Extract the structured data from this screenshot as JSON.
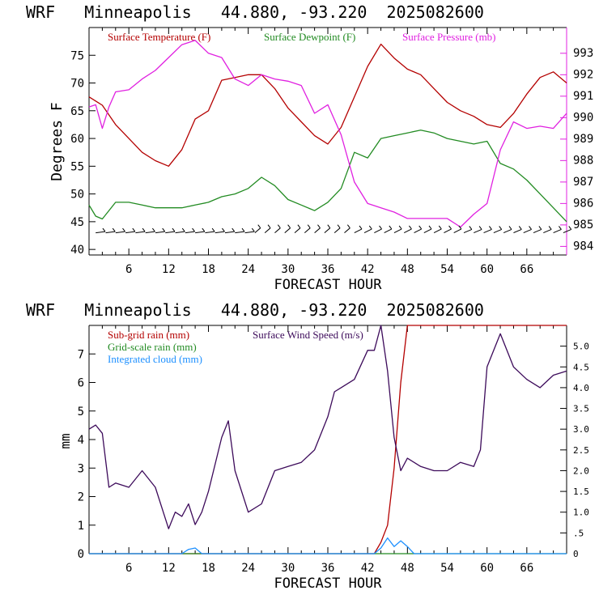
{
  "chart_data": [
    {
      "type": "line",
      "title": "WRF   Minneapolis   44.880, -93.220  2025082600",
      "xlabel": "FORECAST HOUR",
      "ylabel": "Degrees F",
      "xlim": [
        0,
        72
      ],
      "ylim": [
        39,
        80
      ],
      "y2lim": [
        983.6,
        994.2
      ],
      "x_ticks": [
        6,
        12,
        18,
        24,
        30,
        36,
        42,
        48,
        54,
        60,
        66
      ],
      "y_ticks": [
        40,
        45,
        50,
        55,
        60,
        65,
        70,
        75
      ],
      "y2_ticks": [
        984,
        985,
        986,
        987,
        988,
        989,
        990,
        991,
        992,
        993
      ],
      "series": [
        {
          "name": "Surface Temperature (F)",
          "color": "#b40000",
          "axis": "left",
          "x": [
            0,
            2,
            4,
            6,
            8,
            10,
            12,
            14,
            16,
            18,
            20,
            22,
            24,
            26,
            28,
            30,
            32,
            34,
            36,
            38,
            40,
            42,
            44,
            46,
            48,
            50,
            52,
            54,
            56,
            58,
            60,
            62,
            64,
            66,
            68,
            70,
            72
          ],
          "values": [
            67.5,
            66,
            62.5,
            60,
            57.5,
            56,
            55,
            58,
            63.5,
            65,
            70.5,
            71,
            71.5,
            71.5,
            69,
            65.5,
            63,
            60.5,
            59,
            62,
            67.5,
            73,
            77,
            74.5,
            72.5,
            71.5,
            69,
            66.5,
            65,
            64,
            62.5,
            62,
            64.5,
            68,
            71,
            72,
            70
          ]
        },
        {
          "name": "Surface Dewpoint (F)",
          "color": "#228b22",
          "axis": "left",
          "x": [
            0,
            1,
            2,
            4,
            6,
            8,
            10,
            12,
            14,
            16,
            18,
            20,
            22,
            24,
            26,
            28,
            30,
            32,
            34,
            36,
            38,
            40,
            42,
            44,
            46,
            48,
            50,
            52,
            54,
            56,
            58,
            60,
            62,
            64,
            66,
            68,
            70,
            72
          ],
          "values": [
            48,
            46,
            45.5,
            48.5,
            48.5,
            48,
            47.5,
            47.5,
            47.5,
            48,
            48.5,
            49.5,
            50,
            51,
            53,
            51.5,
            49,
            48,
            47,
            48.5,
            51,
            57.5,
            56.5,
            60,
            60.5,
            61,
            61.5,
            61,
            60,
            59.5,
            59,
            59.5,
            55.5,
            54.5,
            52.5,
            50,
            47.5,
            45
          ]
        },
        {
          "name": "Surface Pressure (mb)",
          "color": "#e020e0",
          "axis": "right",
          "x": [
            0,
            1,
            2,
            3,
            4,
            6,
            8,
            10,
            12,
            14,
            16,
            18,
            20,
            22,
            24,
            26,
            28,
            30,
            32,
            34,
            36,
            38,
            40,
            42,
            44,
            46,
            48,
            50,
            52,
            54,
            56,
            58,
            60,
            62,
            64,
            66,
            68,
            70,
            72
          ],
          "values": [
            990.5,
            990.6,
            989.5,
            990.5,
            991.2,
            991.3,
            991.8,
            992.2,
            992.8,
            993.4,
            993.6,
            993.0,
            992.8,
            991.8,
            991.5,
            992.0,
            991.8,
            991.7,
            991.5,
            990.2,
            990.6,
            989.2,
            987.0,
            986.0,
            985.8,
            985.6,
            985.3,
            985.3,
            985.3,
            985.3,
            984.9,
            985.5,
            986.0,
            988.5,
            989.8,
            989.5,
            989.6,
            989.5,
            990.2
          ]
        }
      ],
      "wind_barbs_row_y": 43
    },
    {
      "type": "line",
      "title": "WRF   Minneapolis   44.880, -93.220  2025082600",
      "xlabel": "FORECAST HOUR",
      "ylabel": "mm",
      "xlim": [
        0,
        72
      ],
      "ylim": [
        0,
        8
      ],
      "y2lim": [
        0,
        5.5
      ],
      "x_ticks": [
        6,
        12,
        18,
        24,
        30,
        36,
        42,
        48,
        54,
        60,
        66
      ],
      "y_ticks": [
        0,
        1,
        2,
        3,
        4,
        5,
        6,
        7
      ],
      "y2_ticks": [
        "0",
        ".5",
        "1.0",
        "1.5",
        "2.0",
        "2.5",
        "3.0",
        "3.5",
        "4.0",
        "4.5",
        "5.0"
      ],
      "series": [
        {
          "name": "Sub-grid rain (mm)",
          "color": "#b40000",
          "axis": "left",
          "x": [
            0,
            43,
            44,
            45,
            46,
            47,
            48,
            72
          ],
          "values": [
            0,
            0,
            0.4,
            1.0,
            3.0,
            6.0,
            8.0,
            8.0
          ]
        },
        {
          "name": "Grid-scale rain (mm)",
          "color": "#228b22",
          "axis": "left",
          "x": [
            0,
            72
          ],
          "values": [
            0,
            0
          ]
        },
        {
          "name": "Integrated cloud (mm)",
          "color": "#1e90ff",
          "axis": "left",
          "x": [
            0,
            14,
            15,
            16,
            17,
            43,
            44,
            45,
            46,
            47,
            48,
            49,
            72
          ],
          "values": [
            0,
            0,
            0.15,
            0.2,
            0,
            0,
            0.2,
            0.55,
            0.25,
            0.45,
            0.25,
            0,
            0
          ]
        },
        {
          "name": "Surface Wind Speed (m/s)",
          "color": "#3c0a5a",
          "axis": "right",
          "x": [
            0,
            1,
            2,
            3,
            4,
            6,
            8,
            10,
            12,
            13,
            14,
            15,
            16,
            17,
            18,
            20,
            21,
            22,
            24,
            26,
            28,
            30,
            32,
            34,
            36,
            37,
            38,
            40,
            42,
            43,
            44,
            45,
            46,
            47,
            48,
            50,
            52,
            54,
            56,
            58,
            59,
            60,
            62,
            64,
            66,
            68,
            70,
            72
          ],
          "values": [
            3.0,
            3.1,
            2.9,
            1.6,
            1.7,
            1.6,
            2.0,
            1.6,
            0.6,
            1.0,
            0.9,
            1.2,
            0.7,
            1.0,
            1.5,
            2.8,
            3.2,
            2.0,
            1.0,
            1.2,
            2.0,
            2.1,
            2.2,
            2.5,
            3.3,
            3.9,
            4.0,
            4.2,
            4.9,
            4.9,
            5.5,
            4.4,
            2.8,
            2.0,
            2.3,
            2.1,
            2.0,
            2.0,
            2.2,
            2.1,
            2.5,
            4.5,
            5.3,
            4.5,
            4.2,
            4.0,
            4.3,
            4.4
          ]
        }
      ]
    }
  ]
}
